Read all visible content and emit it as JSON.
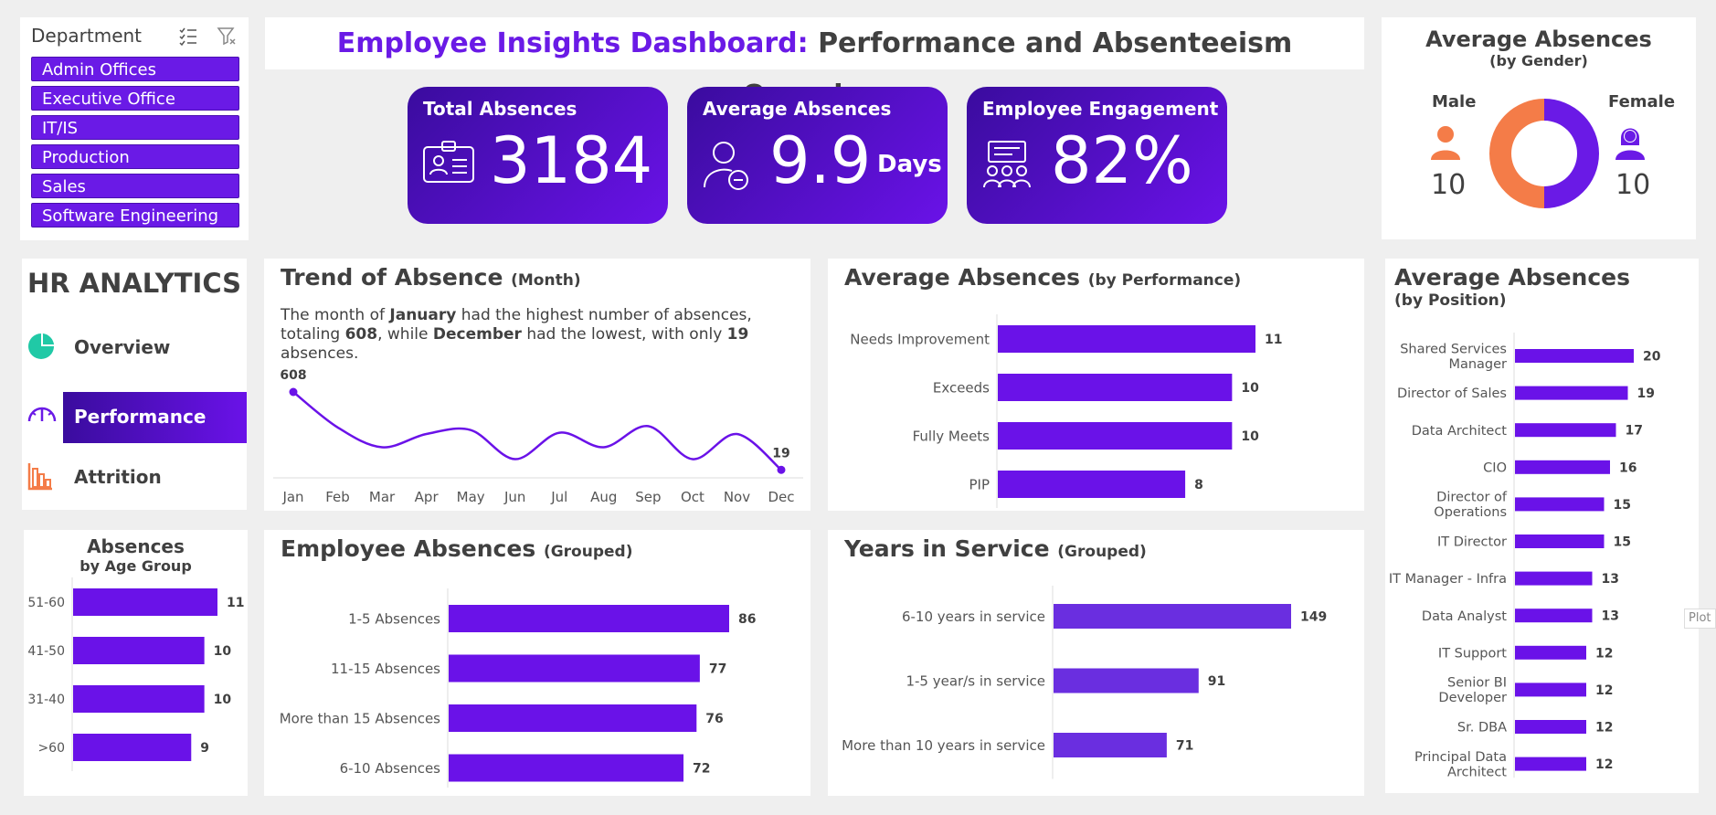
{
  "slicer": {
    "header": "Department",
    "items": [
      "Admin Offices",
      "Executive Office",
      "IT/IS",
      "Production",
      "Sales",
      "Software Engineering"
    ]
  },
  "title": {
    "part1": "Employee Insights Dashboard:",
    "part2": "Performance and Absenteeism Overview"
  },
  "kpis": {
    "total_absences": {
      "label": "Total Absences",
      "value": "3184"
    },
    "average_absences": {
      "label": "Average Absences",
      "value": "9.9",
      "unit": "Days"
    },
    "engagement": {
      "label": "Employee Engagement",
      "value": "82%"
    }
  },
  "gender": {
    "title": "Average Absences",
    "subtitle": "(by Gender)",
    "male_label": "Male",
    "male_value": "10",
    "female_label": "Female",
    "female_value": "10",
    "male_color": "#f47c48",
    "female_color": "#6a1ae6"
  },
  "nav": {
    "title": "HR ANALYTICS",
    "items": [
      "Overview",
      "Performance",
      "Attrition"
    ],
    "active": "Performance"
  },
  "trend": {
    "title": "Trend of Absence",
    "title_small": "(Month)",
    "desc_parts": [
      "The month of ",
      "January",
      " had the highest number of absences, totaling ",
      "608",
      ", while ",
      "December",
      " had the lowest, with only ",
      "19",
      " absences."
    ]
  },
  "perf": {
    "title": "Average Absences",
    "title_small": "(by Performance)"
  },
  "position": {
    "title": "Average Absences",
    "subtitle": "(by Position)"
  },
  "age": {
    "title": "Absences",
    "subtitle": "by Age Group"
  },
  "grouped": {
    "title": "Employee Absences",
    "title_small": "(Grouped)"
  },
  "years": {
    "title": "Years in Service",
    "title_small": "(Grouped)"
  },
  "plot_tab": "Plot",
  "colors": {
    "accent": "#6a1ae6",
    "bar": "#6a12e8",
    "bar2": "#6a2ee0",
    "orange": "#f47c48",
    "teal": "#20c9a6"
  },
  "chart_data": [
    {
      "type": "line",
      "id": "trend",
      "x": [
        "Jan",
        "Feb",
        "Mar",
        "Apr",
        "May",
        "Jun",
        "Jul",
        "Aug",
        "Sep",
        "Oct",
        "Nov",
        "Dec"
      ],
      "values": [
        608,
        340,
        190,
        290,
        320,
        100,
        300,
        190,
        350,
        100,
        290,
        19
      ],
      "labels": {
        "first": "608",
        "last": "19"
      }
    },
    {
      "type": "bar",
      "id": "perf",
      "categories": [
        "Needs Improvement",
        "Exceeds",
        "Fully Meets",
        "PIP"
      ],
      "values": [
        11,
        10,
        10,
        8
      ]
    },
    {
      "type": "bar",
      "id": "position",
      "categories": [
        "Shared Services Manager",
        "Director of Sales",
        "Data Architect",
        "CIO",
        "Director of Operations",
        "IT Director",
        "IT Manager - Infra",
        "Data Analyst",
        "IT Support",
        "Senior BI Developer",
        "Sr. DBA",
        "Principal Data Architect"
      ],
      "values": [
        20,
        19,
        17,
        16,
        15,
        15,
        13,
        13,
        12,
        12,
        12,
        12
      ]
    },
    {
      "type": "bar",
      "id": "age",
      "categories": [
        "51-60",
        "41-50",
        "31-40",
        ">60"
      ],
      "values": [
        11,
        10,
        10,
        9
      ]
    },
    {
      "type": "bar",
      "id": "grouped",
      "categories": [
        "1-5 Absences",
        "11-15 Absences",
        "More than 15 Absences",
        "6-10 Absences"
      ],
      "values": [
        86,
        77,
        76,
        72
      ]
    },
    {
      "type": "bar",
      "id": "years",
      "categories": [
        "6-10 years in service",
        "1-5 year/s in service",
        "More than 10 years in service"
      ],
      "values": [
        149,
        91,
        71
      ]
    }
  ]
}
